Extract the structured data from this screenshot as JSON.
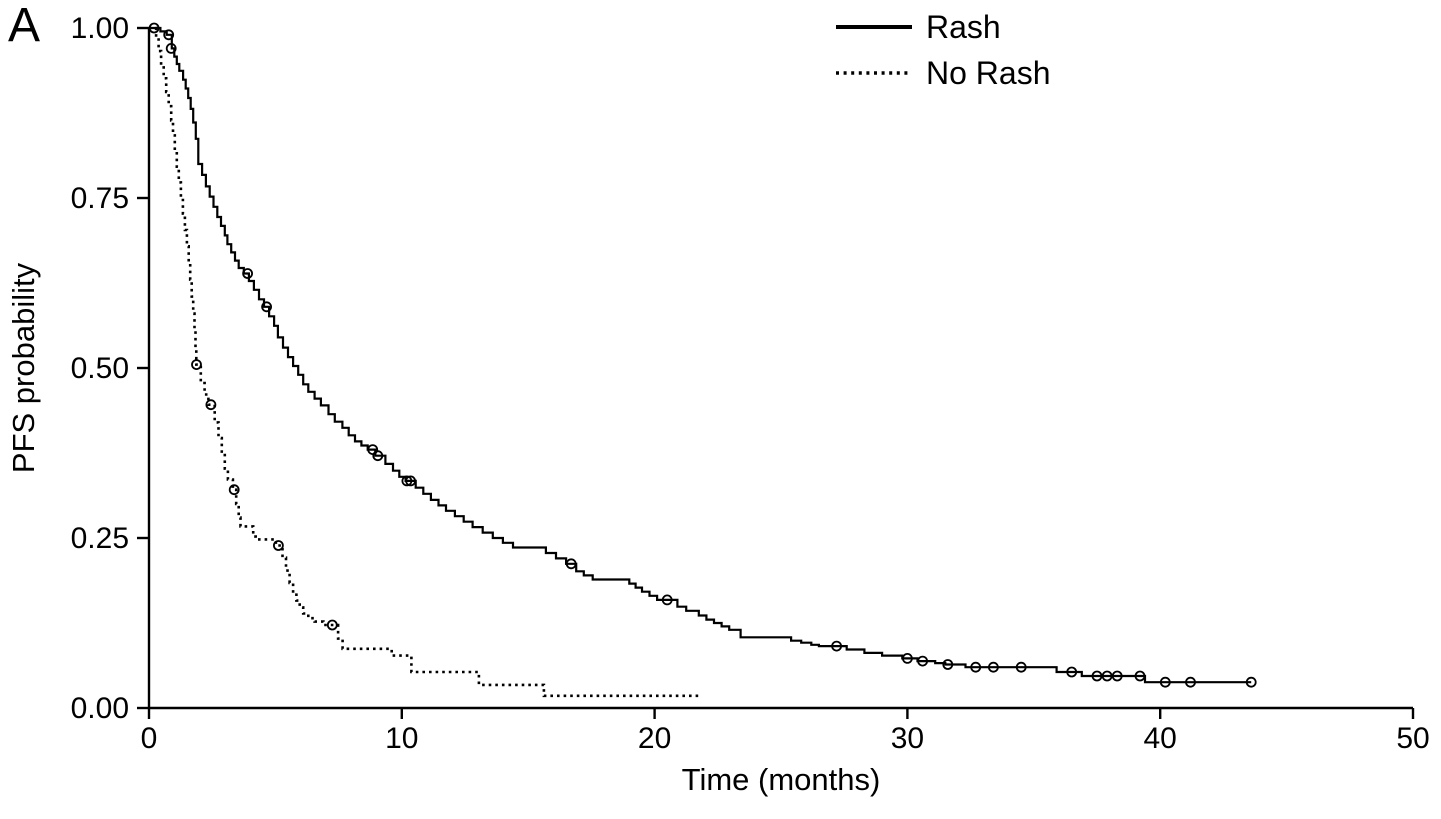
{
  "figure": {
    "panel_label": "A",
    "background_color": "#ffffff",
    "line_color": "#000000"
  },
  "chart_data": {
    "type": "line",
    "subtype": "kaplan-meier-step",
    "title": "",
    "xlabel": "Time (months)",
    "ylabel": "PFS probability",
    "xlim": [
      0,
      50
    ],
    "ylim": [
      0,
      1
    ],
    "x_ticks": [
      "0",
      "10",
      "20",
      "30",
      "40",
      "50"
    ],
    "x_tick_values": [
      0,
      10,
      20,
      30,
      40,
      50
    ],
    "y_ticks": [
      "0.00",
      "0.25",
      "0.50",
      "0.75",
      "1.00"
    ],
    "y_tick_values": [
      0,
      0.25,
      0.5,
      0.75,
      1.0
    ],
    "grid": false,
    "legend": {
      "position": "top-center",
      "entries": [
        {
          "label": "Rash",
          "style": "solid"
        },
        {
          "label": "No Rash",
          "style": "dotted"
        }
      ]
    },
    "series": [
      {
        "name": "Rash",
        "style": "solid",
        "steps": [
          [
            0,
            1.0
          ],
          [
            0.45,
            0.995
          ],
          [
            0.7,
            0.99
          ],
          [
            0.9,
            0.97
          ],
          [
            1.0,
            0.958
          ],
          [
            1.1,
            0.947
          ],
          [
            1.2,
            0.937
          ],
          [
            1.35,
            0.924
          ],
          [
            1.45,
            0.911
          ],
          [
            1.55,
            0.897
          ],
          [
            1.65,
            0.881
          ],
          [
            1.75,
            0.861
          ],
          [
            1.85,
            0.837
          ],
          [
            1.95,
            0.8
          ],
          [
            2.1,
            0.784
          ],
          [
            2.25,
            0.767
          ],
          [
            2.4,
            0.752
          ],
          [
            2.55,
            0.737
          ],
          [
            2.7,
            0.722
          ],
          [
            2.85,
            0.709
          ],
          [
            3.0,
            0.695
          ],
          [
            3.1,
            0.682
          ],
          [
            3.25,
            0.67
          ],
          [
            3.4,
            0.658
          ],
          [
            3.55,
            0.647
          ],
          [
            3.75,
            0.639
          ],
          [
            3.95,
            0.628
          ],
          [
            4.15,
            0.615
          ],
          [
            4.35,
            0.601
          ],
          [
            4.55,
            0.59
          ],
          [
            4.75,
            0.576
          ],
          [
            4.95,
            0.562
          ],
          [
            5.1,
            0.545
          ],
          [
            5.3,
            0.53
          ],
          [
            5.5,
            0.516
          ],
          [
            5.7,
            0.503
          ],
          [
            5.9,
            0.49
          ],
          [
            6.1,
            0.476
          ],
          [
            6.3,
            0.465
          ],
          [
            6.55,
            0.455
          ],
          [
            6.8,
            0.445
          ],
          [
            7.1,
            0.432
          ],
          [
            7.35,
            0.421
          ],
          [
            7.65,
            0.412
          ],
          [
            7.9,
            0.401
          ],
          [
            8.15,
            0.392
          ],
          [
            8.4,
            0.386
          ],
          [
            8.65,
            0.38
          ],
          [
            8.95,
            0.371
          ],
          [
            9.35,
            0.359
          ],
          [
            9.65,
            0.349
          ],
          [
            9.9,
            0.34
          ],
          [
            10.15,
            0.334
          ],
          [
            10.55,
            0.324
          ],
          [
            10.85,
            0.315
          ],
          [
            11.15,
            0.306
          ],
          [
            11.45,
            0.298
          ],
          [
            11.75,
            0.29
          ],
          [
            12.1,
            0.282
          ],
          [
            12.45,
            0.274
          ],
          [
            12.8,
            0.266
          ],
          [
            13.2,
            0.258
          ],
          [
            13.6,
            0.25
          ],
          [
            14.0,
            0.243
          ],
          [
            14.4,
            0.236
          ],
          [
            15.7,
            0.228
          ],
          [
            16.1,
            0.22
          ],
          [
            16.5,
            0.212
          ],
          [
            16.9,
            0.201
          ],
          [
            17.2,
            0.195
          ],
          [
            17.55,
            0.189
          ],
          [
            19.0,
            0.183
          ],
          [
            19.25,
            0.177
          ],
          [
            19.5,
            0.171
          ],
          [
            19.8,
            0.165
          ],
          [
            20.1,
            0.159
          ],
          [
            20.9,
            0.149
          ],
          [
            21.25,
            0.143
          ],
          [
            21.75,
            0.136
          ],
          [
            22.05,
            0.13
          ],
          [
            22.35,
            0.125
          ],
          [
            22.65,
            0.12
          ],
          [
            22.95,
            0.115
          ],
          [
            23.4,
            0.104
          ],
          [
            25.4,
            0.099
          ],
          [
            25.8,
            0.096
          ],
          [
            26.2,
            0.093
          ],
          [
            26.5,
            0.091
          ],
          [
            27.6,
            0.086
          ],
          [
            28.3,
            0.081
          ],
          [
            29.0,
            0.077
          ],
          [
            29.8,
            0.073
          ],
          [
            30.4,
            0.069
          ],
          [
            31.1,
            0.066
          ],
          [
            31.5,
            0.064
          ],
          [
            32.3,
            0.06
          ],
          [
            35.9,
            0.053
          ],
          [
            36.9,
            0.047
          ],
          [
            39.4,
            0.038
          ],
          [
            43.6,
            0.038
          ]
        ],
        "censors": [
          [
            0.2,
            1.0
          ],
          [
            0.78,
            0.99
          ],
          [
            0.88,
            0.97
          ],
          [
            3.9,
            0.639
          ],
          [
            4.65,
            0.59
          ],
          [
            8.85,
            0.38
          ],
          [
            9.05,
            0.371
          ],
          [
            10.2,
            0.334
          ],
          [
            10.35,
            0.334
          ],
          [
            16.7,
            0.212
          ],
          [
            20.5,
            0.159
          ],
          [
            27.2,
            0.091
          ],
          [
            30.0,
            0.073
          ],
          [
            30.6,
            0.069
          ],
          [
            31.6,
            0.064
          ],
          [
            32.7,
            0.06
          ],
          [
            33.4,
            0.06
          ],
          [
            34.5,
            0.06
          ],
          [
            36.5,
            0.053
          ],
          [
            37.5,
            0.047
          ],
          [
            37.9,
            0.047
          ],
          [
            38.3,
            0.047
          ],
          [
            39.2,
            0.047
          ],
          [
            40.2,
            0.038
          ],
          [
            41.2,
            0.038
          ],
          [
            43.6,
            0.038
          ]
        ]
      },
      {
        "name": "No Rash",
        "style": "dotted",
        "steps": [
          [
            0,
            1.0
          ],
          [
            0.28,
            0.986
          ],
          [
            0.38,
            0.966
          ],
          [
            0.48,
            0.946
          ],
          [
            0.58,
            0.926
          ],
          [
            0.68,
            0.906
          ],
          [
            0.78,
            0.885
          ],
          [
            0.88,
            0.864
          ],
          [
            0.95,
            0.842
          ],
          [
            1.02,
            0.819
          ],
          [
            1.1,
            0.796
          ],
          [
            1.18,
            0.773
          ],
          [
            1.26,
            0.75
          ],
          [
            1.34,
            0.727
          ],
          [
            1.42,
            0.703
          ],
          [
            1.5,
            0.679
          ],
          [
            1.57,
            0.655
          ],
          [
            1.63,
            0.63
          ],
          [
            1.69,
            0.605
          ],
          [
            1.75,
            0.58
          ],
          [
            1.8,
            0.555
          ],
          [
            1.84,
            0.53
          ],
          [
            1.87,
            0.505
          ],
          [
            2.05,
            0.478
          ],
          [
            2.2,
            0.461
          ],
          [
            2.35,
            0.446
          ],
          [
            2.6,
            0.42
          ],
          [
            2.75,
            0.397
          ],
          [
            2.88,
            0.377
          ],
          [
            3.0,
            0.352
          ],
          [
            3.12,
            0.336
          ],
          [
            3.32,
            0.321
          ],
          [
            3.45,
            0.3
          ],
          [
            3.55,
            0.28
          ],
          [
            3.62,
            0.267
          ],
          [
            4.12,
            0.252
          ],
          [
            4.22,
            0.248
          ],
          [
            5.02,
            0.239
          ],
          [
            5.28,
            0.221
          ],
          [
            5.42,
            0.202
          ],
          [
            5.56,
            0.184
          ],
          [
            5.7,
            0.169
          ],
          [
            5.83,
            0.158
          ],
          [
            5.96,
            0.148
          ],
          [
            6.1,
            0.139
          ],
          [
            6.3,
            0.132
          ],
          [
            6.55,
            0.127
          ],
          [
            6.9,
            0.122
          ],
          [
            7.48,
            0.102
          ],
          [
            7.66,
            0.087
          ],
          [
            9.6,
            0.077
          ],
          [
            10.38,
            0.053
          ],
          [
            13.05,
            0.034
          ],
          [
            15.62,
            0.018
          ],
          [
            21.8,
            0.018
          ]
        ],
        "censors": [
          [
            1.88,
            0.505
          ],
          [
            2.45,
            0.446
          ],
          [
            3.37,
            0.321
          ],
          [
            5.12,
            0.239
          ],
          [
            7.25,
            0.122
          ]
        ]
      }
    ]
  }
}
